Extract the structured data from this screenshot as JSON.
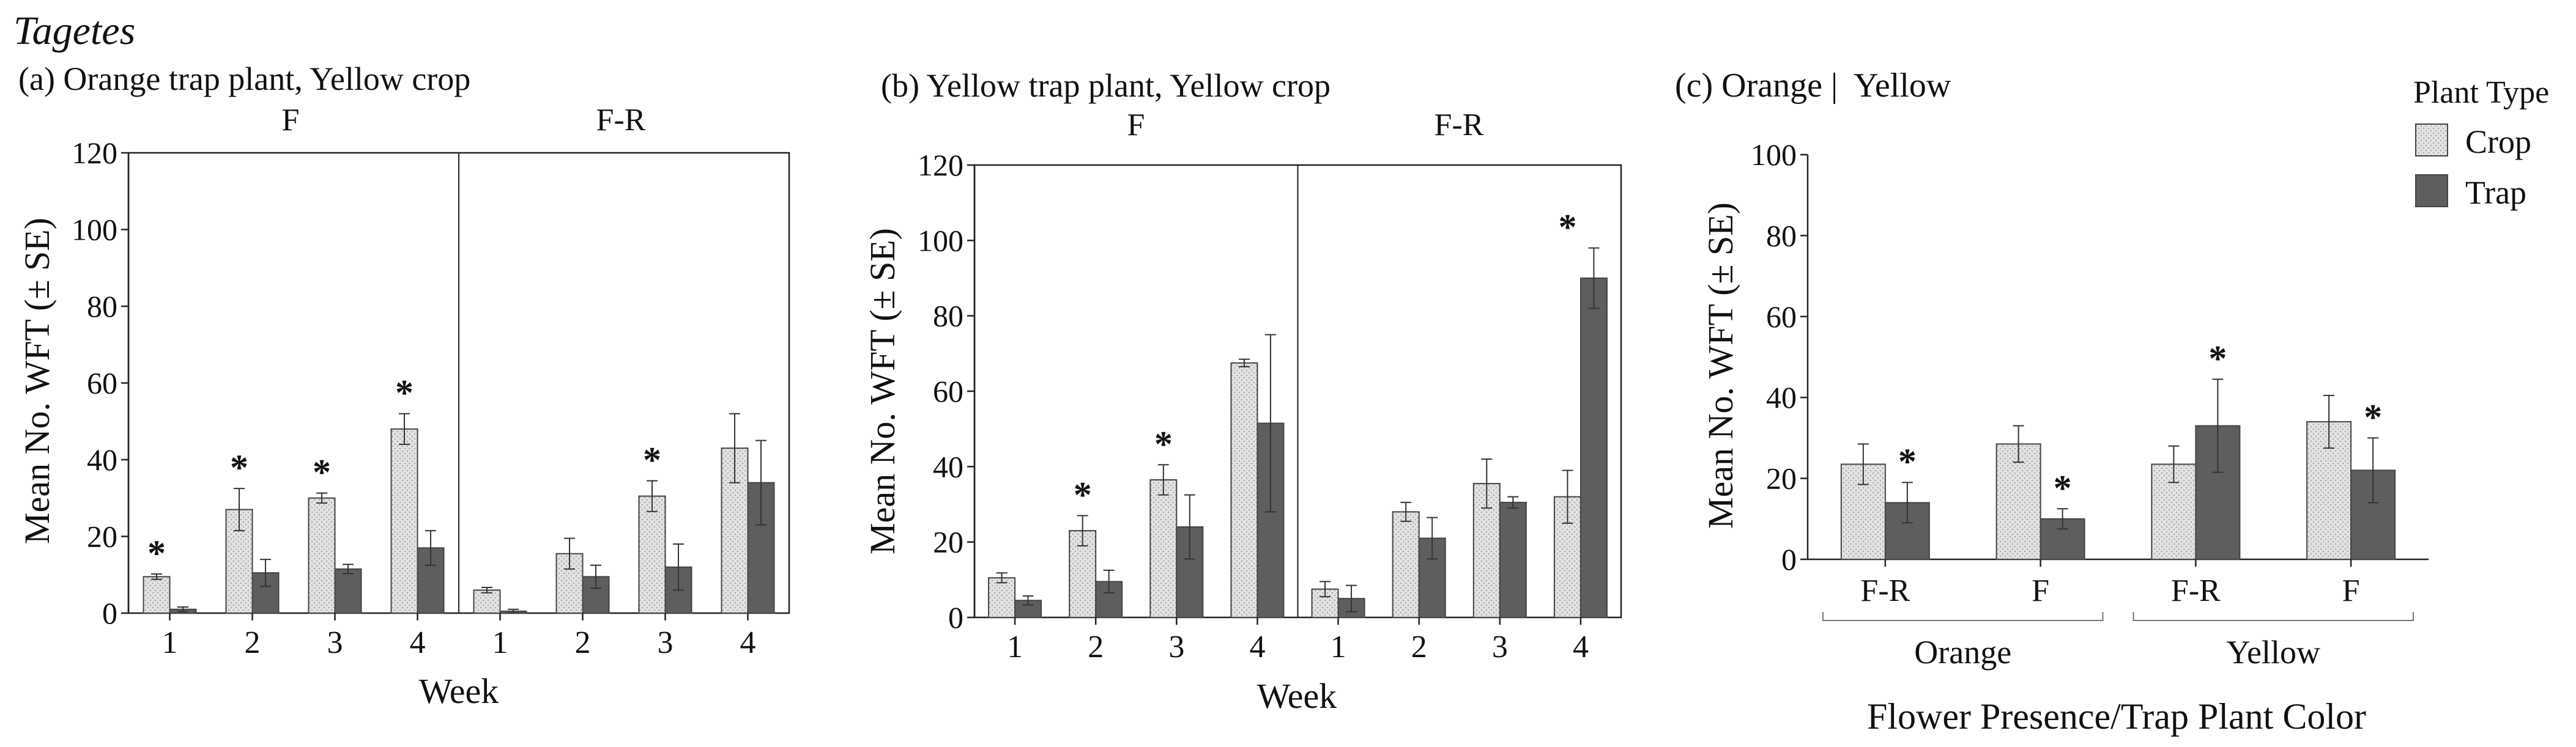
{
  "figure": {
    "genus": "Tagetes",
    "colors": {
      "crop_fill": "#e2e2e2",
      "trap_fill": "#5e5e5e",
      "axis": "#222222",
      "stipple": "#a8a8a8"
    },
    "significance_marker": "*"
  },
  "legend": {
    "title": "Plant Type",
    "crop_label": "Crop",
    "trap_label": "Trap"
  },
  "chart_data": [
    {
      "id": "a",
      "type": "bar",
      "title": "(a) Orange trap plant, Yellow crop",
      "ylabel": "Mean No. WFT (± SE)",
      "xlabel": "Week",
      "ylim": [
        0,
        120
      ],
      "yticks": [
        0,
        20,
        40,
        60,
        80,
        100,
        120
      ],
      "panels": [
        {
          "label": "F",
          "categories": [
            "1",
            "2",
            "3",
            "4"
          ],
          "series": [
            {
              "name": "Crop",
              "values": [
                9.5,
                27,
                30,
                48
              ],
              "se": [
                0.7,
                5.5,
                1.3,
                4
              ]
            },
            {
              "name": "Trap",
              "values": [
                1,
                10.5,
                11.5,
                17
              ],
              "se": [
                0.6,
                3.5,
                1.2,
                4.5
              ]
            }
          ],
          "significant": [
            true,
            true,
            true,
            true
          ]
        },
        {
          "label": "F-R",
          "categories": [
            "1",
            "2",
            "3",
            "4"
          ],
          "series": [
            {
              "name": "Crop",
              "values": [
                6,
                15.5,
                30.5,
                43
              ],
              "se": [
                0.7,
                4,
                4,
                9
              ]
            },
            {
              "name": "Trap",
              "values": [
                0.5,
                9.5,
                12,
                34
              ],
              "se": [
                0.5,
                3,
                6,
                11
              ]
            }
          ],
          "significant": [
            false,
            false,
            true,
            false
          ]
        }
      ]
    },
    {
      "id": "b",
      "type": "bar",
      "title": "(b) Yellow trap plant, Yellow crop",
      "ylabel": "Mean No. WFT (± SE)",
      "xlabel": "Week",
      "ylim": [
        0,
        120
      ],
      "yticks": [
        0,
        20,
        40,
        60,
        80,
        100,
        120
      ],
      "panels": [
        {
          "label": "F",
          "categories": [
            "1",
            "2",
            "3",
            "4"
          ],
          "series": [
            {
              "name": "Crop",
              "values": [
                10.5,
                23,
                36.5,
                67.5
              ],
              "se": [
                1.3,
                4,
                4,
                1
              ]
            },
            {
              "name": "Trap",
              "values": [
                4.5,
                9.5,
                24,
                51.5
              ],
              "se": [
                1.2,
                3,
                8.5,
                23.5
              ]
            }
          ],
          "significant": [
            false,
            true,
            true,
            false
          ]
        },
        {
          "label": "F-R",
          "categories": [
            "1",
            "2",
            "3",
            "4"
          ],
          "series": [
            {
              "name": "Crop",
              "values": [
                7.5,
                28,
                35.5,
                32
              ],
              "se": [
                2,
                2.5,
                6.5,
                7
              ]
            },
            {
              "name": "Trap",
              "values": [
                5,
                21,
                30.5,
                90
              ],
              "se": [
                3.5,
                5.5,
                1.5,
                8
              ]
            }
          ],
          "significant": [
            false,
            false,
            false,
            true
          ]
        }
      ]
    },
    {
      "id": "c",
      "type": "bar",
      "title": "(c) Orange |  Yellow",
      "ylabel": "Mean No. WFT (± SE)",
      "xlabel": "Flower Presence/Trap Plant Color",
      "ylim": [
        0,
        100
      ],
      "yticks": [
        0,
        20,
        40,
        60,
        80,
        100
      ],
      "categories": [
        "F-R",
        "F",
        "F-R",
        "F"
      ],
      "groups": [
        {
          "label": "Orange",
          "categories": [
            0,
            1
          ]
        },
        {
          "label": "Yellow",
          "categories": [
            2,
            3
          ]
        }
      ],
      "series": [
        {
          "name": "Crop",
          "values": [
            23.5,
            28.5,
            23.5,
            34
          ],
          "se": [
            5,
            4.5,
            4.5,
            6.5
          ]
        },
        {
          "name": "Trap",
          "values": [
            14,
            10,
            33,
            22
          ],
          "se": [
            5,
            2.5,
            11.5,
            8
          ]
        }
      ],
      "significant": [
        true,
        true,
        true,
        true
      ]
    }
  ]
}
